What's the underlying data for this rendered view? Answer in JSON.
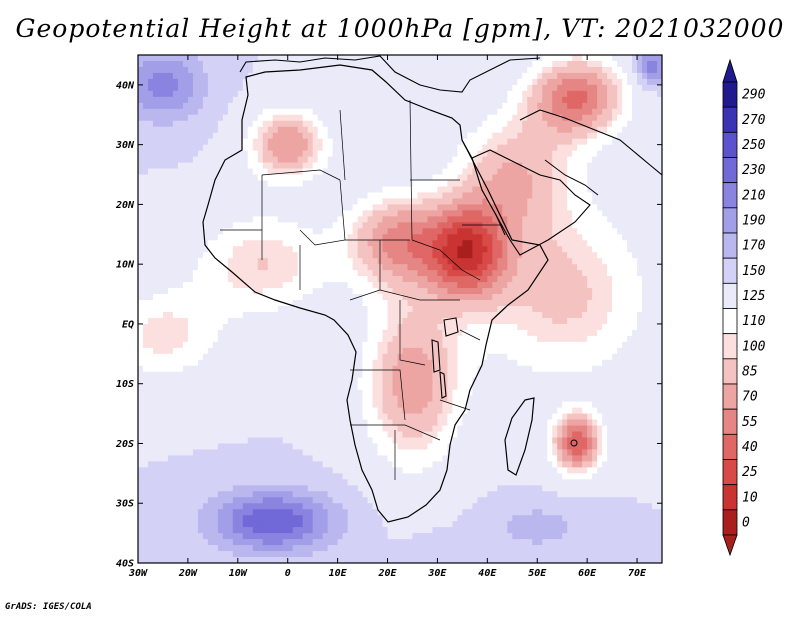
{
  "title": "Geopotential Height at 1000hPa [gpm], VT: 2021032000",
  "credit": "GrADS: IGES/COLA",
  "map": {
    "lon_range": [
      -30,
      75
    ],
    "lat_range": [
      -40,
      45
    ],
    "lat_ticks": [
      {
        "value": 40,
        "label": "40N"
      },
      {
        "value": 30,
        "label": "30N"
      },
      {
        "value": 20,
        "label": "20N"
      },
      {
        "value": 10,
        "label": "10N"
      },
      {
        "value": 0,
        "label": "EQ"
      },
      {
        "value": -10,
        "label": "10S"
      },
      {
        "value": -20,
        "label": "20S"
      },
      {
        "value": -30,
        "label": "30S"
      },
      {
        "value": -40,
        "label": "40S"
      }
    ],
    "lon_ticks": [
      {
        "value": -30,
        "label": "30W"
      },
      {
        "value": -20,
        "label": "20W"
      },
      {
        "value": -10,
        "label": "10W"
      },
      {
        "value": 0,
        "label": "0"
      },
      {
        "value": 10,
        "label": "10E"
      },
      {
        "value": 20,
        "label": "20E"
      },
      {
        "value": 30,
        "label": "30E"
      },
      {
        "value": 40,
        "label": "40E"
      },
      {
        "value": 50,
        "label": "50E"
      },
      {
        "value": 60,
        "label": "60E"
      },
      {
        "value": 70,
        "label": "70E"
      }
    ],
    "field": {
      "base": 150,
      "centers": [
        {
          "lon": 36,
          "lat": 12,
          "value": 40,
          "sx": 8,
          "sy": 8
        },
        {
          "lon": 22,
          "lat": 14,
          "value": 70,
          "sx": 10,
          "sy": 8
        },
        {
          "lon": 0,
          "lat": 30,
          "value": 70,
          "sx": 8,
          "sy": 6
        },
        {
          "lon": 25,
          "lat": -10,
          "value": 75,
          "sx": 10,
          "sy": 14
        },
        {
          "lon": 58,
          "lat": -20,
          "value": 45,
          "sx": 5,
          "sy": 5
        },
        {
          "lon": 58,
          "lat": 38,
          "value": 55,
          "sx": 10,
          "sy": 7
        },
        {
          "lon": 55,
          "lat": 5,
          "value": 95,
          "sx": 18,
          "sy": 15
        },
        {
          "lon": -5,
          "lat": 10,
          "value": 100,
          "sx": 14,
          "sy": 9
        },
        {
          "lon": 45,
          "lat": 25,
          "value": 90,
          "sx": 12,
          "sy": 10
        },
        {
          "lon": -25,
          "lat": -2,
          "value": 105,
          "sx": 12,
          "sy": 8
        },
        {
          "lon": -3,
          "lat": -33,
          "value": 250,
          "sx": 12,
          "sy": 5
        },
        {
          "lon": -25,
          "lat": 40,
          "value": 220,
          "sx": 8,
          "sy": 6
        },
        {
          "lon": 73,
          "lat": 43,
          "value": 230,
          "sx": 3,
          "sy": 3
        },
        {
          "lon": 50,
          "lat": -34,
          "value": 180,
          "sx": 10,
          "sy": 4
        },
        {
          "lon": 30,
          "lat": -38,
          "value": 160,
          "sx": 6,
          "sy": 3
        }
      ]
    }
  },
  "colorbar": {
    "levels": [
      "290",
      "270",
      "250",
      "230",
      "210",
      "190",
      "170",
      "150",
      "125",
      "110",
      "100",
      "85",
      "70",
      "55",
      "40",
      "25",
      "10",
      "0"
    ],
    "colors": [
      "#1f1b8f",
      "#3a33b3",
      "#5a52cf",
      "#7169d8",
      "#8a84e0",
      "#a29ee8",
      "#bab7ef",
      "#d3d1f6",
      "#ebeaf9",
      "#ffffff",
      "#fbe0df",
      "#f4c3c1",
      "#eda5a3",
      "#e68684",
      "#df6765",
      "#d74a48",
      "#c93432",
      "#a81f1e"
    ]
  }
}
